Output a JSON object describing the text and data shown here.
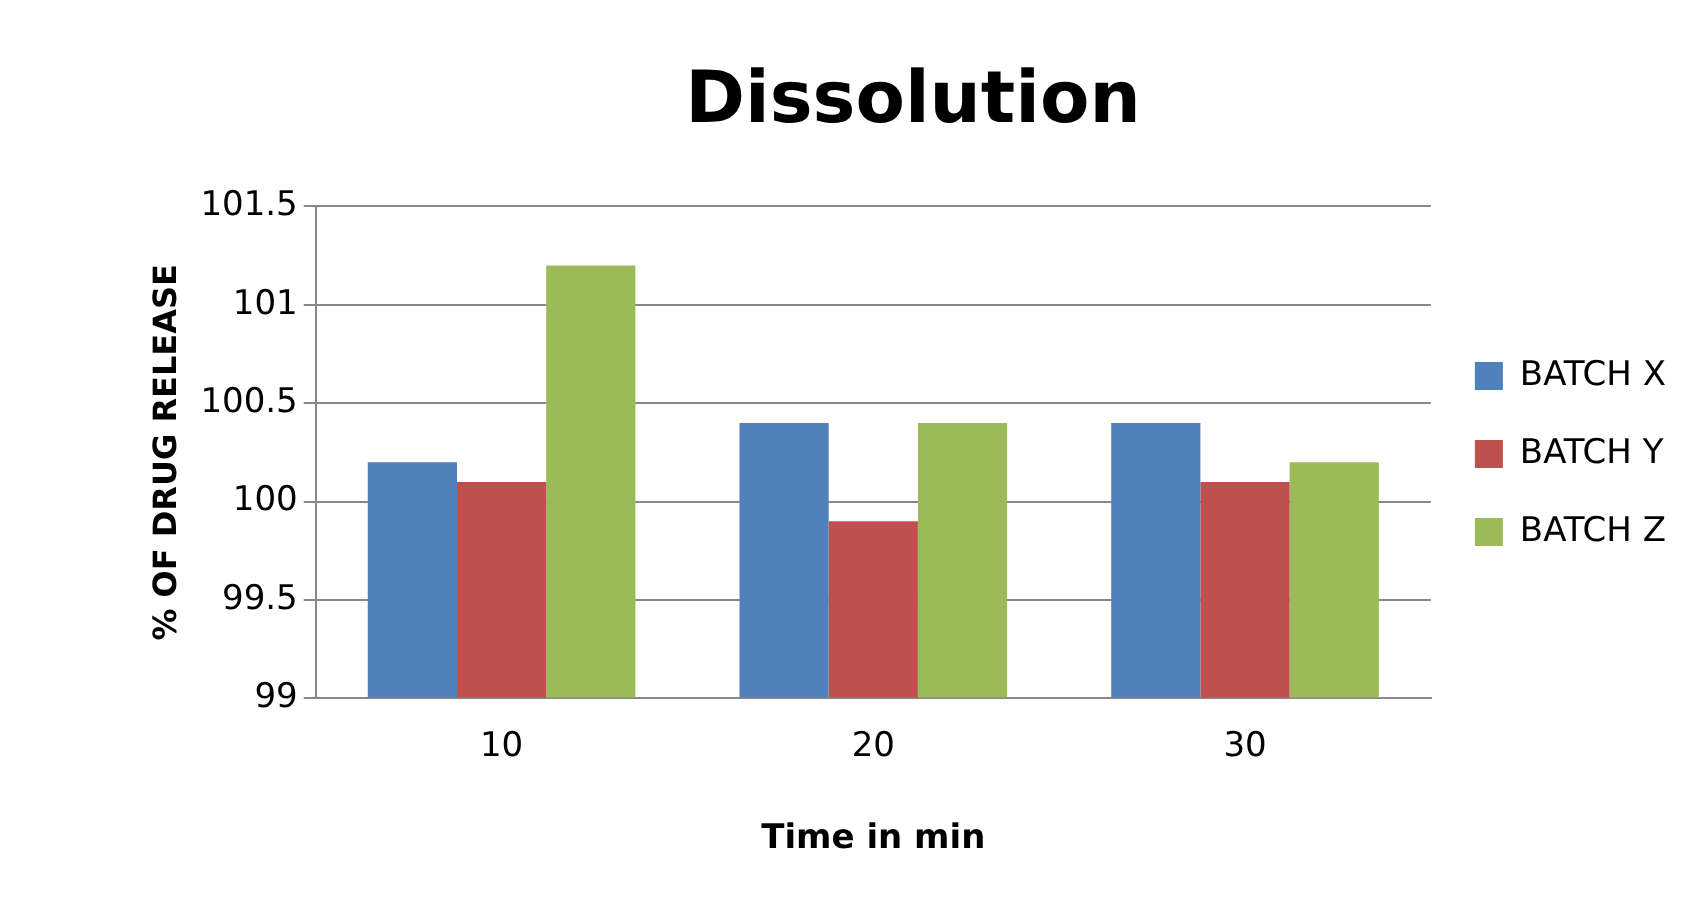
{
  "chart_data": {
    "type": "bar",
    "title": "Dissolution",
    "xlabel": "Time in min",
    "ylabel": "% OF DRUG RELEASE",
    "categories": [
      "10",
      "20",
      "30"
    ],
    "series": [
      {
        "name": "BATCH X",
        "color": "#4f81bd",
        "values": [
          100.2,
          100.4,
          100.4
        ]
      },
      {
        "name": "BATCH Y",
        "color": "#c0504d",
        "values": [
          100.1,
          99.9,
          100.1
        ]
      },
      {
        "name": "BATCH Z",
        "color": "#9bbb59",
        "values": [
          101.2,
          100.4,
          100.2
        ]
      }
    ],
    "ylim": [
      99,
      101.5
    ],
    "yticks": [
      99,
      99.5,
      100,
      100.5,
      101,
      101.5
    ],
    "grid": "y",
    "legend": "right"
  }
}
